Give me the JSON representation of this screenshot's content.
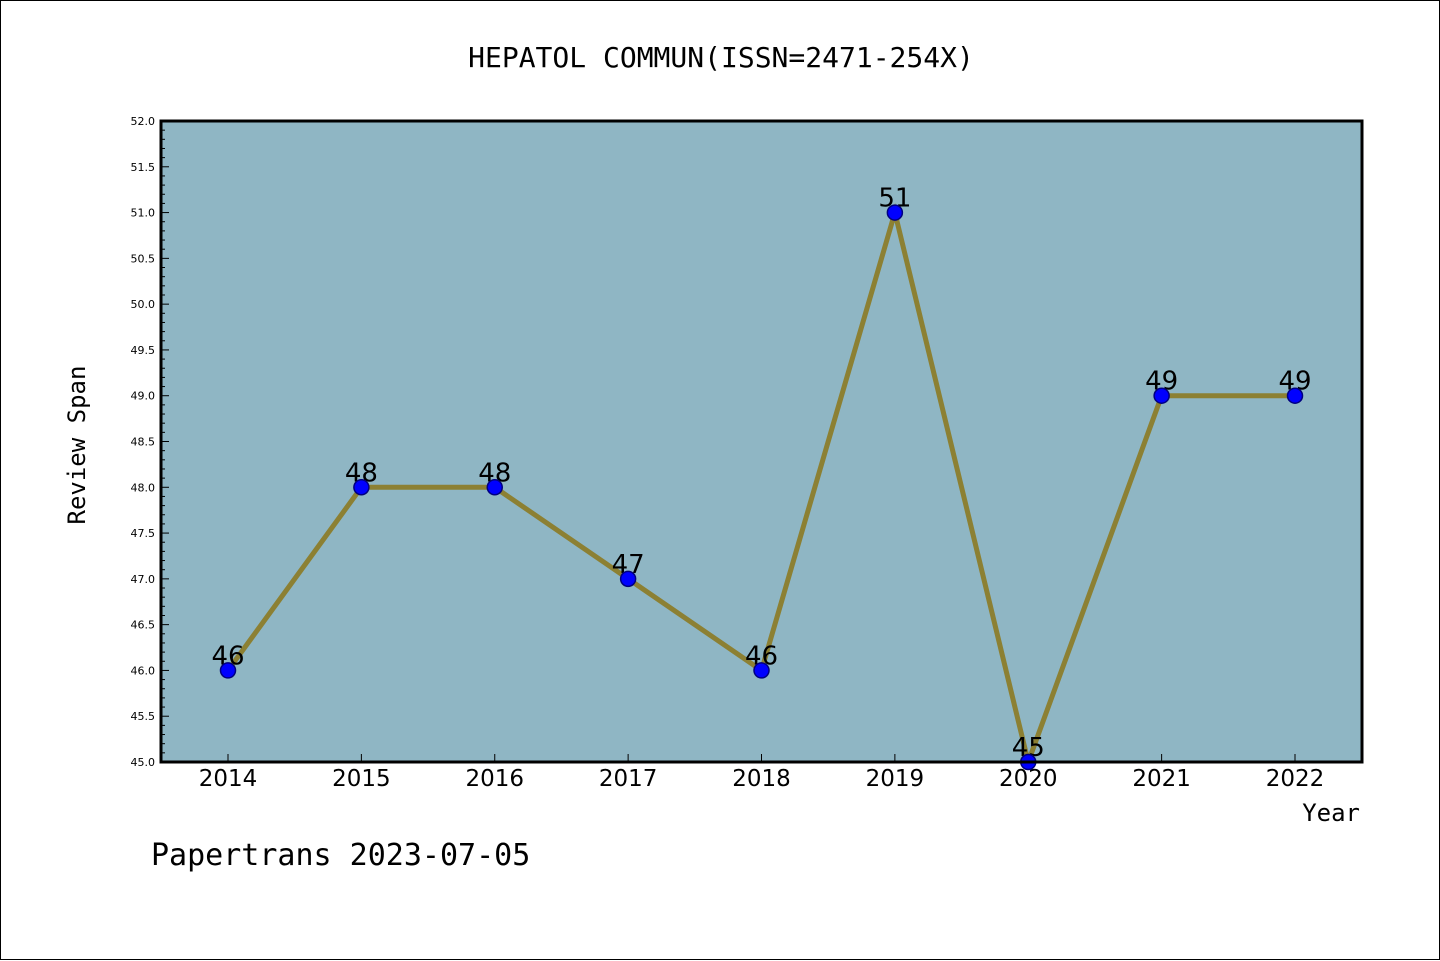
{
  "chart_data": {
    "type": "line",
    "title": "HEPATOL COMMUN(ISSN=2471-254X)",
    "xlabel": "Year",
    "ylabel": "Review Span",
    "categories": [
      "2014",
      "2015",
      "2016",
      "2017",
      "2018",
      "2019",
      "2020",
      "2021",
      "2022"
    ],
    "series": [
      {
        "values": [
          46,
          48,
          48,
          47,
          46,
          51,
          45,
          49,
          49
        ]
      }
    ],
    "data_labels": [
      "46",
      "48",
      "48",
      "47",
      "46",
      "51",
      "45",
      "49",
      "49"
    ],
    "ylim": [
      45.0,
      52.0
    ],
    "yticks": [
      "45.0",
      "45.5",
      "46.0",
      "46.5",
      "47.0",
      "47.5",
      "48.0",
      "48.5",
      "49.0",
      "49.5",
      "50.0",
      "50.5",
      "51.0",
      "51.5",
      "52.0"
    ],
    "grid": false,
    "legend": "none",
    "colors": {
      "plot_background": "#8fb6c4",
      "line": "#8c8033",
      "marker_fill": "#0000ff",
      "marker_edge": "#000080"
    }
  },
  "footer": {
    "credit": "Papertrans 2023-07-05"
  }
}
